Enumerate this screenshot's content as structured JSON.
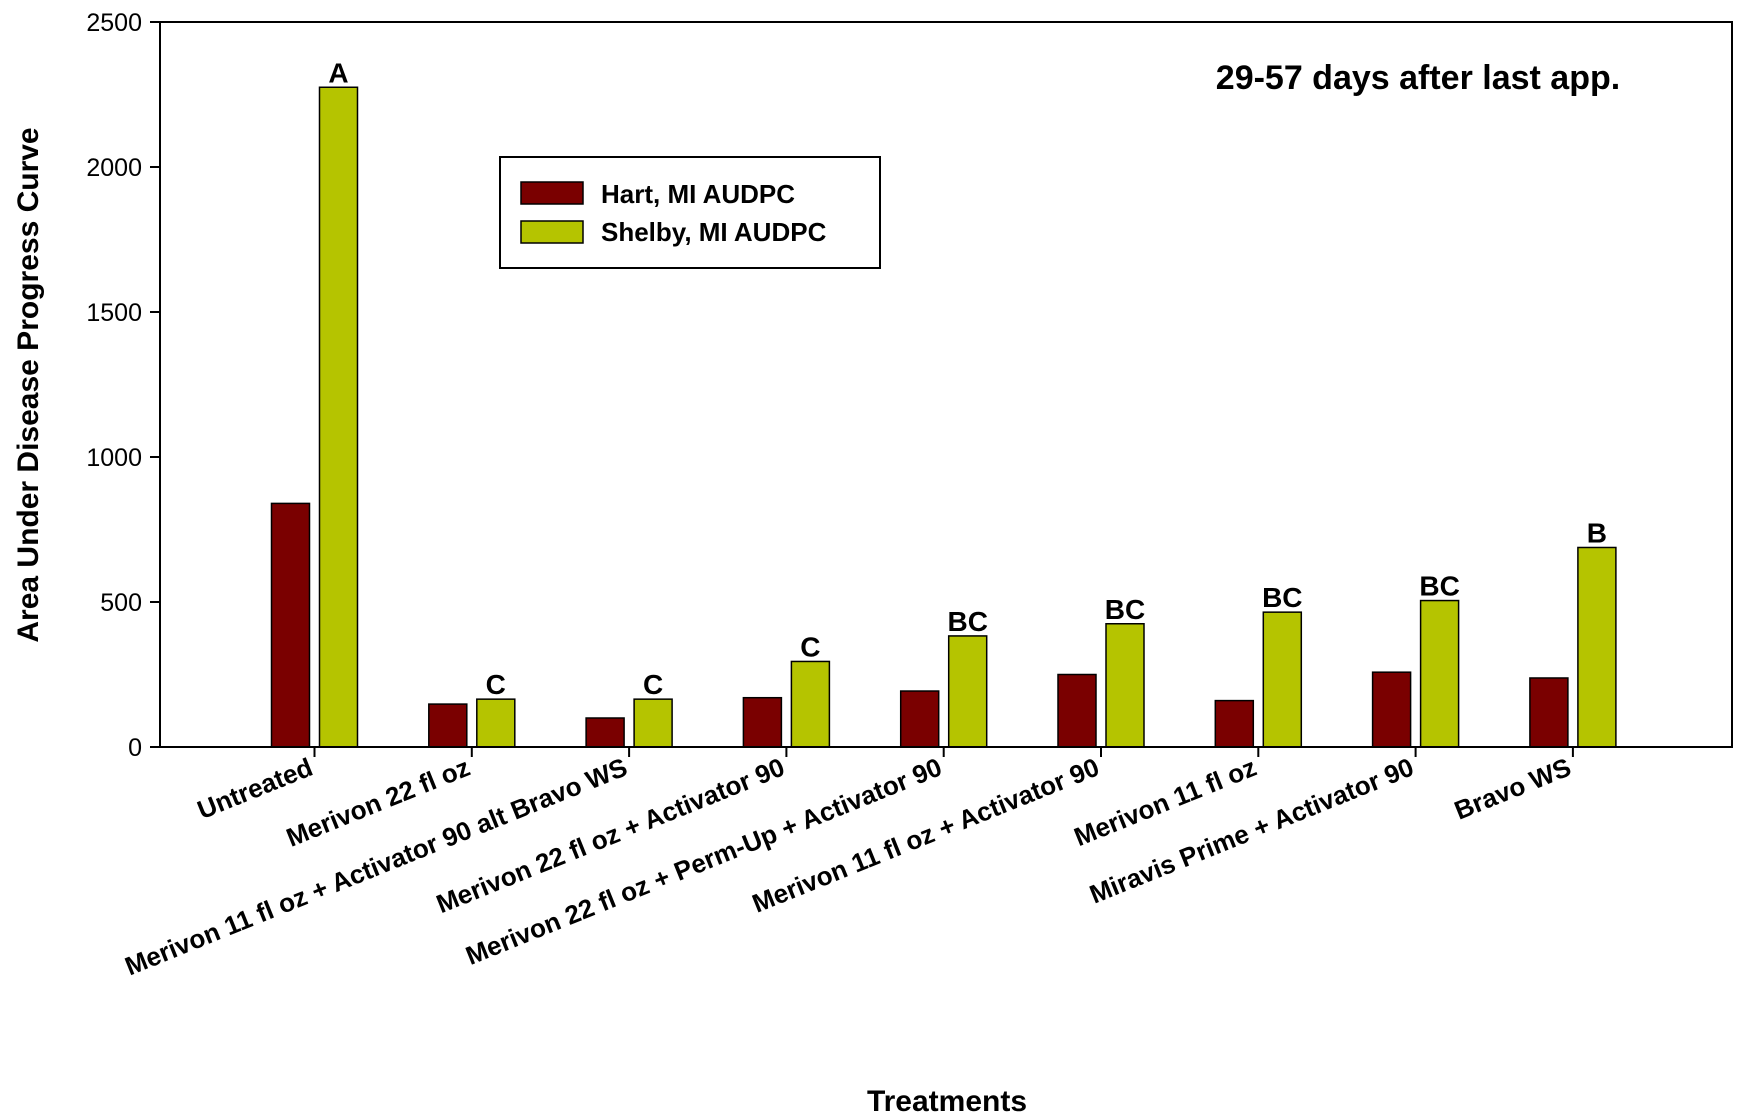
{
  "chart_data": {
    "type": "bar",
    "xlabel": "Treatments",
    "ylabel": "Area Under Disease Progress Curve",
    "ylim": [
      0,
      2500
    ],
    "yticks": [
      "0",
      "500",
      "1000",
      "1500",
      "2000",
      "2500"
    ],
    "annotation": "29-57 days after last app.",
    "legend_position": "upper-center",
    "grid": false,
    "categories": [
      "Untreated",
      "Merivon 22 fl oz",
      "Merivon 11 fl oz + Activator 90 alt Bravo WS",
      "Merivon 22 fl oz + Activator 90",
      "Merivon 22 fl oz + Perm-Up + Activator 90",
      "Merivon 11 fl oz + Activator 90",
      "Merivon 11 fl oz",
      "Miravis Prime + Activator 90",
      "Bravo WS"
    ],
    "series": [
      {
        "name": "Hart, MI AUDPC",
        "color": "#7a0000",
        "values": [
          840,
          148,
          100,
          170,
          193,
          250,
          160,
          258,
          238
        ]
      },
      {
        "name": "Shelby, MI AUDPC",
        "color": "#b5c400",
        "values": [
          2275,
          165,
          165,
          295,
          383,
          425,
          465,
          505,
          688
        ]
      }
    ],
    "significance_letters": [
      "A",
      "C",
      "C",
      "C",
      "BC",
      "BC",
      "BC",
      "BC",
      "B"
    ]
  }
}
